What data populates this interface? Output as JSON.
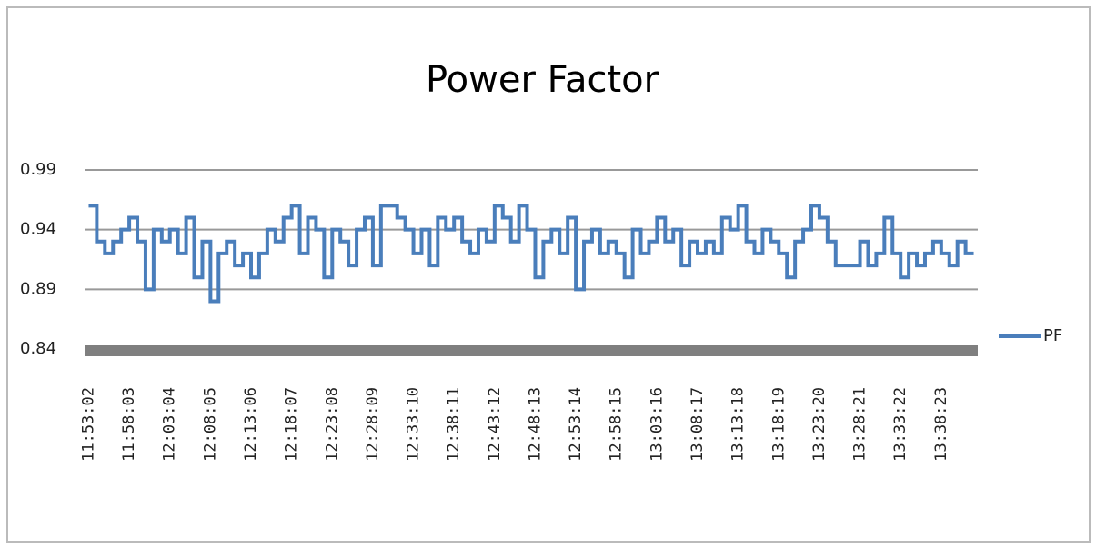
{
  "chart_data": {
    "type": "line",
    "title": "Power Factor",
    "categories": [
      "11:53:02",
      null,
      null,
      null,
      null,
      "11:58:03",
      null,
      null,
      null,
      null,
      "12:03:04",
      null,
      null,
      null,
      null,
      "12:08:05",
      null,
      null,
      null,
      null,
      "12:13:06",
      null,
      null,
      null,
      null,
      "12:18:07",
      null,
      null,
      null,
      null,
      "12:23:08",
      null,
      null,
      null,
      null,
      "12:28:09",
      null,
      null,
      null,
      null,
      "12:33:10",
      null,
      null,
      null,
      null,
      "12:38:11",
      null,
      null,
      null,
      null,
      "12:43:12",
      null,
      null,
      null,
      null,
      "12:48:13",
      null,
      null,
      null,
      null,
      "12:53:14",
      null,
      null,
      null,
      null,
      "12:58:15",
      null,
      null,
      null,
      null,
      "13:03:16",
      null,
      null,
      null,
      null,
      "13:08:17",
      null,
      null,
      null,
      null,
      "13:13:18",
      null,
      null,
      null,
      null,
      "13:18:19",
      null,
      null,
      null,
      null,
      "13:23:20",
      null,
      null,
      null,
      null,
      "13:28:21",
      null,
      null,
      null,
      null,
      "13:33:22",
      null,
      null,
      null,
      null,
      "13:38:23",
      null,
      null,
      null,
      null
    ],
    "series": [
      {
        "name": "PF",
        "color": "#4a7ebb",
        "values": [
          0.96,
          0.93,
          0.92,
          0.93,
          0.94,
          0.95,
          0.93,
          0.89,
          0.94,
          0.93,
          0.94,
          0.92,
          0.95,
          0.9,
          0.93,
          0.88,
          0.92,
          0.93,
          0.91,
          0.92,
          0.9,
          0.92,
          0.94,
          0.93,
          0.95,
          0.96,
          0.92,
          0.95,
          0.94,
          0.9,
          0.94,
          0.93,
          0.91,
          0.94,
          0.95,
          0.91,
          0.96,
          0.96,
          0.95,
          0.94,
          0.92,
          0.94,
          0.91,
          0.95,
          0.94,
          0.95,
          0.93,
          0.92,
          0.94,
          0.93,
          0.96,
          0.95,
          0.93,
          0.96,
          0.94,
          0.9,
          0.93,
          0.94,
          0.92,
          0.95,
          0.89,
          0.93,
          0.94,
          0.92,
          0.93,
          0.92,
          0.9,
          0.94,
          0.92,
          0.93,
          0.95,
          0.93,
          0.94,
          0.91,
          0.93,
          0.92,
          0.93,
          0.92,
          0.95,
          0.94,
          0.96,
          0.93,
          0.92,
          0.94,
          0.93,
          0.92,
          0.9,
          0.93,
          0.94,
          0.96,
          0.95,
          0.93,
          0.91,
          0.91,
          0.91,
          0.93,
          0.91,
          0.92,
          0.95,
          0.92,
          0.9,
          0.92,
          0.91,
          0.92,
          0.93,
          0.92,
          0.91,
          0.93,
          0.92,
          0.92
        ]
      }
    ],
    "ylim": [
      0.84,
      0.99
    ],
    "yticks": [
      0.84,
      0.89,
      0.94,
      0.99
    ],
    "grid": true,
    "legend": "right"
  }
}
